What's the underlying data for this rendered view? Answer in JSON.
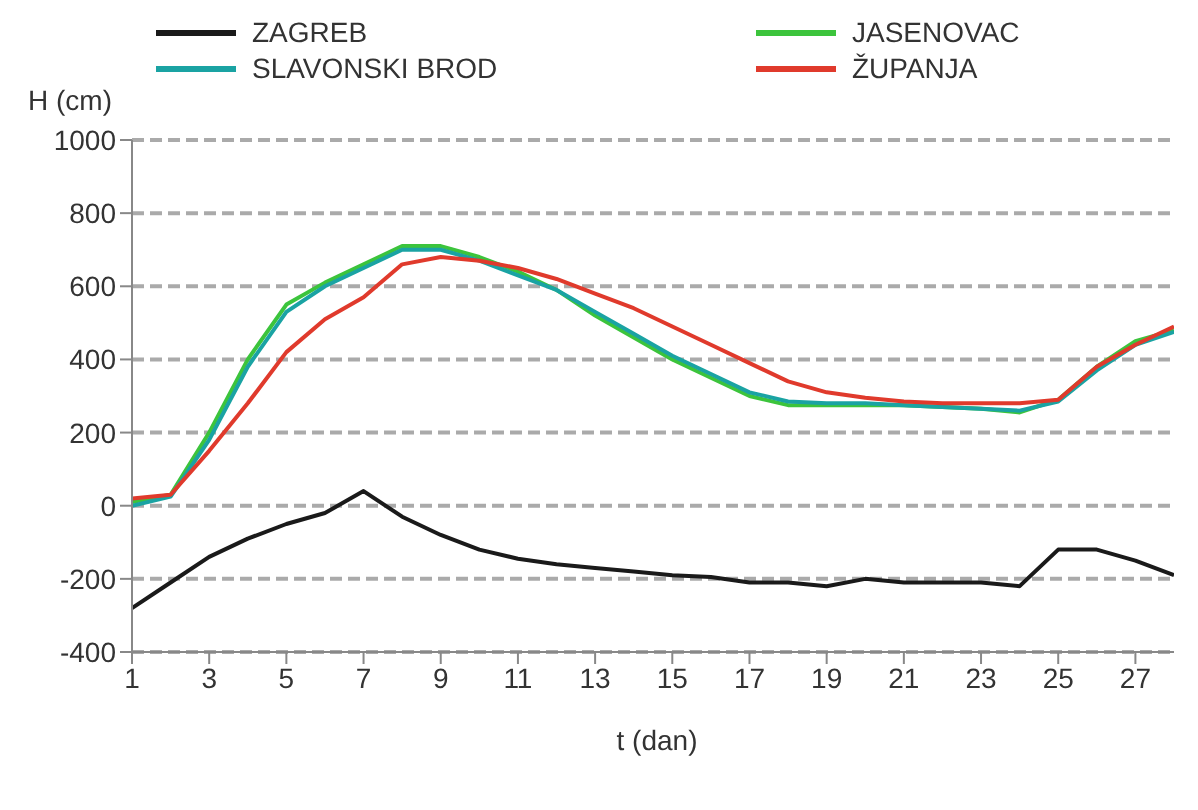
{
  "chart_data": {
    "type": "line",
    "xlabel": "t (dan)",
    "ylabel": "H (cm)",
    "x": [
      1,
      2,
      3,
      4,
      5,
      6,
      7,
      8,
      9,
      10,
      11,
      12,
      13,
      14,
      15,
      16,
      17,
      18,
      19,
      20,
      21,
      22,
      23,
      24,
      25,
      26,
      27,
      28
    ],
    "series": [
      {
        "name": "ZAGREB",
        "color": "#1a1a1a",
        "values": [
          -280,
          -210,
          -140,
          -90,
          -50,
          -20,
          40,
          -30,
          -80,
          -120,
          -145,
          -160,
          -170,
          -180,
          -190,
          -195,
          -210,
          -210,
          -220,
          -200,
          -210,
          -210,
          -210,
          -220,
          -120,
          -120,
          -150,
          -190
        ]
      },
      {
        "name": "JASENOVAC",
        "color": "#3cc43c",
        "values": [
          10,
          30,
          200,
          400,
          550,
          610,
          660,
          710,
          710,
          680,
          640,
          590,
          520,
          460,
          400,
          350,
          300,
          275,
          275,
          275,
          275,
          270,
          265,
          255,
          290,
          380,
          450,
          480
        ]
      },
      {
        "name": "SLAVONSKI BROD",
        "color": "#1aa3a3",
        "values": [
          0,
          25,
          180,
          380,
          530,
          600,
          650,
          700,
          700,
          670,
          630,
          590,
          530,
          470,
          410,
          360,
          310,
          285,
          280,
          280,
          275,
          270,
          265,
          260,
          285,
          370,
          440,
          475
        ]
      },
      {
        "name": "ŽUPANJA",
        "color": "#e03a2c",
        "values": [
          20,
          30,
          150,
          280,
          420,
          510,
          570,
          660,
          680,
          670,
          650,
          620,
          580,
          540,
          490,
          440,
          390,
          340,
          310,
          295,
          285,
          280,
          280,
          280,
          290,
          380,
          440,
          490
        ]
      }
    ],
    "xlim": [
      1,
      28
    ],
    "xticks": [
      1,
      3,
      5,
      7,
      9,
      11,
      13,
      15,
      17,
      19,
      21,
      23,
      25,
      27
    ],
    "ylim": [
      -400,
      1000
    ],
    "yticks": [
      -400,
      -200,
      0,
      200,
      400,
      600,
      800,
      1000
    ],
    "grid": "y",
    "legend": "top",
    "marker": "none",
    "line_style": "solid"
  }
}
